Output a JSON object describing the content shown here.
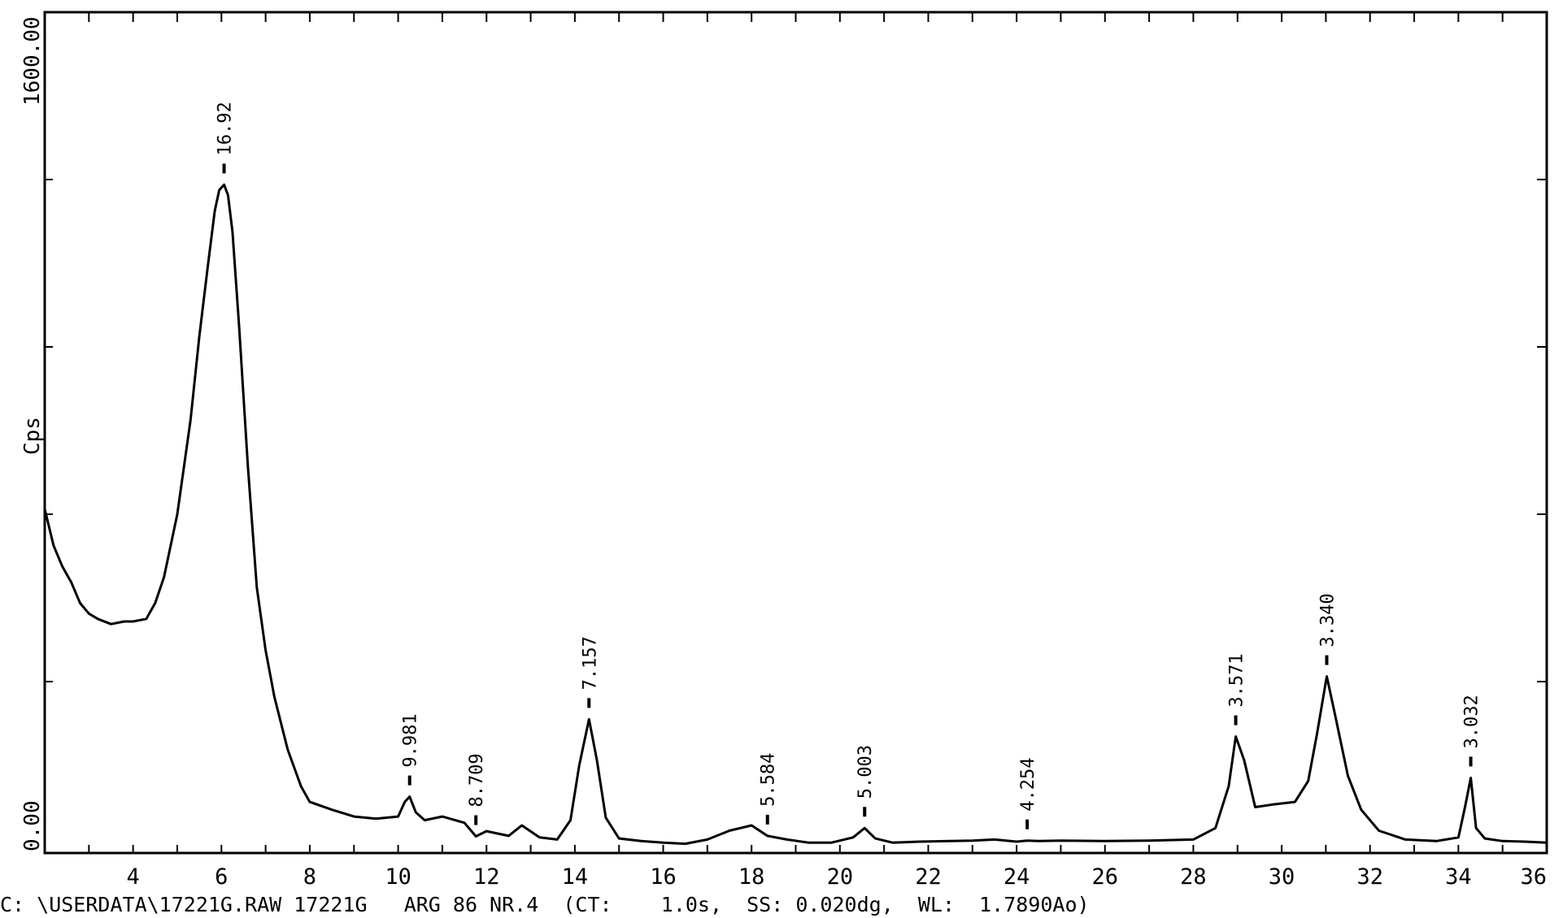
{
  "chart_data": {
    "type": "line",
    "title": "",
    "xlabel": "",
    "ylabel": "Cps",
    "xlim": [
      2,
      36
    ],
    "ylim": [
      0,
      1600
    ],
    "grid": false,
    "legend": "none",
    "x_ticks": [
      4,
      6,
      8,
      10,
      12,
      14,
      16,
      18,
      20,
      22,
      24,
      26,
      28,
      30,
      32,
      34,
      36
    ],
    "y_tick_labels": [
      "0.00",
      "1600.00"
    ],
    "y_minor_ticks": [
      320,
      640,
      960,
      1280
    ],
    "footer": "C: \\USERDATA\\17221G.RAW 17221G   ARG 86 NR.4  (CT:    1.0s,  SS: 0.020dg,  WL:  1.7890Ao)",
    "peaks": [
      {
        "x": 6.06,
        "y": 1270,
        "label": "16.92"
      },
      {
        "x": 10.26,
        "y": 100,
        "label": "9.981"
      },
      {
        "x": 11.76,
        "y": 24,
        "label": "8.709"
      },
      {
        "x": 14.32,
        "y": 248,
        "label": "7.157"
      },
      {
        "x": 18.36,
        "y": 25,
        "label": "5.584"
      },
      {
        "x": 20.56,
        "y": 40,
        "label": "5.003"
      },
      {
        "x": 24.24,
        "y": 16,
        "label": "4.254"
      },
      {
        "x": 28.96,
        "y": 215,
        "label": "3.571"
      },
      {
        "x": 31.02,
        "y": 330,
        "label": "3.340"
      },
      {
        "x": 34.28,
        "y": 136,
        "label": "3.032"
      }
    ],
    "series": [
      {
        "x": [
          2.0,
          2.2,
          2.4,
          2.6,
          2.8,
          3.0,
          3.2,
          3.5,
          3.8,
          4.0,
          4.3,
          4.5,
          4.7,
          5.0,
          5.3,
          5.5,
          5.7,
          5.85,
          5.95,
          6.06,
          6.15,
          6.25,
          6.4,
          6.6,
          6.8,
          7.0,
          7.2,
          7.5,
          7.8,
          8.0,
          8.5,
          9.0,
          9.5,
          10.0,
          10.15,
          10.26,
          10.4,
          10.6,
          11.0,
          11.5,
          11.76,
          12.0,
          12.5,
          12.8,
          13.2,
          13.6,
          13.9,
          14.1,
          14.32,
          14.5,
          14.7,
          15.0,
          15.5,
          16.0,
          16.5,
          17.0,
          17.5,
          18.0,
          18.36,
          18.8,
          19.3,
          19.8,
          20.3,
          20.56,
          20.8,
          21.2,
          21.8,
          22.5,
          23.0,
          23.5,
          24.0,
          24.24,
          24.5,
          25.0,
          26.0,
          27.0,
          28.0,
          28.5,
          28.8,
          28.96,
          29.15,
          29.4,
          29.8,
          30.3,
          30.6,
          30.8,
          31.02,
          31.2,
          31.5,
          31.8,
          32.2,
          32.8,
          33.5,
          34.0,
          34.15,
          34.28,
          34.4,
          34.6,
          35.0,
          35.5,
          36.0
        ],
        "y": [
          650,
          580,
          540,
          510,
          470,
          450,
          440,
          430,
          435,
          435,
          440,
          470,
          520,
          640,
          820,
          980,
          1120,
          1220,
          1260,
          1270,
          1250,
          1180,
          1000,
          730,
          500,
          380,
          290,
          190,
          120,
          90,
          75,
          62,
          58,
          62,
          90,
          100,
          70,
          55,
          62,
          50,
          24,
          34,
          25,
          45,
          22,
          18,
          55,
          160,
          248,
          170,
          60,
          20,
          15,
          12,
          10,
          18,
          35,
          45,
          25,
          18,
          12,
          12,
          22,
          40,
          20,
          12,
          14,
          15,
          16,
          18,
          14,
          16,
          15,
          16,
          15,
          16,
          18,
          40,
          120,
          215,
          170,
          80,
          85,
          90,
          130,
          220,
          330,
          260,
          140,
          75,
          35,
          18,
          15,
          22,
          80,
          136,
          40,
          20,
          15,
          14,
          12
        ]
      }
    ]
  }
}
